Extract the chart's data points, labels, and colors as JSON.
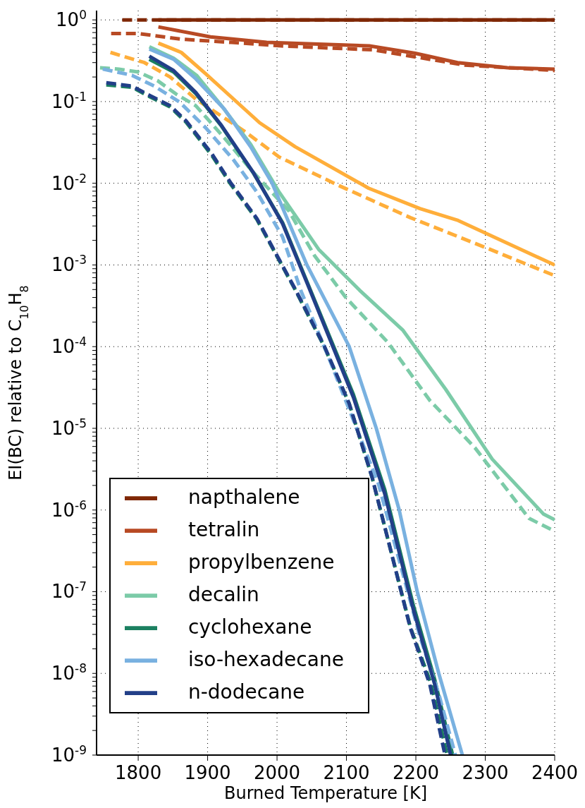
{
  "chart_data": {
    "type": "line",
    "xlabel": "Burned Temperature [K]",
    "ylabel": "EI(BC) relative to C$_{10}$H$_{8}$",
    "xlim": [
      1740,
      2400
    ],
    "xticks": [
      1800,
      1900,
      2000,
      2100,
      2200,
      2300,
      2400
    ],
    "ylim": [
      1e-09,
      1.3
    ],
    "log": "y",
    "grid": true,
    "legend": "bottom left",
    "yticks": [
      {
        "value": 1e-09,
        "label": "10$^{-9}$"
      },
      {
        "value": 1e-08,
        "label": "10$^{-8}$"
      },
      {
        "value": 1e-07,
        "label": "10$^{-7}$"
      },
      {
        "value": 1e-06,
        "label": "10$^{-6}$"
      },
      {
        "value": 1e-05,
        "label": "10$^{-5}$"
      },
      {
        "value": 0.0001,
        "label": "10$^{-4}$"
      },
      {
        "value": 0.001,
        "label": "10$^{-3}$"
      },
      {
        "value": 0.01,
        "label": "10$^{-2}$"
      },
      {
        "value": 0.1,
        "label": "10$^{-1}$"
      },
      {
        "value": 1,
        "label": "10$^{0}$"
      },
      {
        "value": 2e-09,
        "label": null
      },
      {
        "value": 3e-09,
        "label": null
      },
      {
        "value": 4e-09,
        "label": null
      },
      {
        "value": 5e-09,
        "label": null
      },
      {
        "value": 6e-09,
        "label": null
      },
      {
        "value": 7e-09,
        "label": null
      },
      {
        "value": 8e-09,
        "label": null
      },
      {
        "value": 9e-09,
        "label": null
      },
      {
        "value": 2e-08,
        "label": null
      },
      {
        "value": 3e-08,
        "label": null
      },
      {
        "value": 4e-08,
        "label": null
      },
      {
        "value": 5e-08,
        "label": null
      },
      {
        "value": 6e-08,
        "label": null
      },
      {
        "value": 7e-08,
        "label": null
      },
      {
        "value": 8e-08,
        "label": null
      },
      {
        "value": 9e-08,
        "label": null
      },
      {
        "value": 2e-07,
        "label": null
      },
      {
        "value": 3e-07,
        "label": null
      },
      {
        "value": 4e-07,
        "label": null
      },
      {
        "value": 5e-07,
        "label": null
      },
      {
        "value": 6e-07,
        "label": null
      },
      {
        "value": 7e-07,
        "label": null
      },
      {
        "value": 8e-07,
        "label": null
      },
      {
        "value": 9e-07,
        "label": null
      },
      {
        "value": 2e-06,
        "label": null
      },
      {
        "value": 3e-06,
        "label": null
      },
      {
        "value": 4e-06,
        "label": null
      },
      {
        "value": 5e-06,
        "label": null
      },
      {
        "value": 6e-06,
        "label": null
      },
      {
        "value": 7e-06,
        "label": null
      },
      {
        "value": 8e-06,
        "label": null
      },
      {
        "value": 9e-06,
        "label": null
      },
      {
        "value": 2e-05,
        "label": null
      },
      {
        "value": 3e-05,
        "label": null
      },
      {
        "value": 4e-05,
        "label": null
      },
      {
        "value": 5e-05,
        "label": null
      },
      {
        "value": 6e-05,
        "label": null
      },
      {
        "value": 7e-05,
        "label": null
      },
      {
        "value": 8e-05,
        "label": null
      },
      {
        "value": 9e-05,
        "label": null
      },
      {
        "value": 0.0002,
        "label": null
      },
      {
        "value": 0.0003,
        "label": null
      },
      {
        "value": 0.0004,
        "label": null
      },
      {
        "value": 0.0005,
        "label": null
      },
      {
        "value": 0.0006,
        "label": null
      },
      {
        "value": 0.0007,
        "label": null
      },
      {
        "value": 0.0008,
        "label": null
      },
      {
        "value": 0.0009,
        "label": null
      },
      {
        "value": 0.002,
        "label": null
      },
      {
        "value": 0.003,
        "label": null
      },
      {
        "value": 0.004,
        "label": null
      },
      {
        "value": 0.005,
        "label": null
      },
      {
        "value": 0.006,
        "label": null
      },
      {
        "value": 0.007,
        "label": null
      },
      {
        "value": 0.008,
        "label": null
      },
      {
        "value": 0.009,
        "label": null
      },
      {
        "value": 0.02,
        "label": null
      },
      {
        "value": 0.03,
        "label": null
      },
      {
        "value": 0.04,
        "label": null
      },
      {
        "value": 0.05,
        "label": null
      },
      {
        "value": 0.06,
        "label": null
      },
      {
        "value": 0.07,
        "label": null
      },
      {
        "value": 0.08,
        "label": null
      },
      {
        "value": 0.09,
        "label": null
      },
      {
        "value": 0.2,
        "label": null
      },
      {
        "value": 0.3,
        "label": null
      },
      {
        "value": 0.4,
        "label": null
      },
      {
        "value": 0.5,
        "label": null
      },
      {
        "value": 0.6,
        "label": null
      },
      {
        "value": 0.7,
        "label": null
      },
      {
        "value": 0.8,
        "label": null
      },
      {
        "value": 0.9,
        "label": null
      }
    ],
    "series": [
      {
        "name": "napthalene",
        "color": "#7f2704",
        "line_style": "solid",
        "x": [
          1829,
          2000,
          2200,
          2400
        ],
        "values": [
          1,
          1,
          1,
          1
        ]
      },
      {
        "color": "#7f2704",
        "line_style": "dashed",
        "x": [
          1777,
          2000,
          2200,
          2400
        ],
        "values": [
          1,
          1,
          1,
          1
        ]
      },
      {
        "name": "tetralin",
        "color": "#b84a24",
        "line_style": "solid",
        "x": [
          1829,
          1904,
          1985,
          2133,
          2199,
          2260,
          2332,
          2400
        ],
        "values": [
          0.82,
          0.62,
          0.53,
          0.48,
          0.39,
          0.3,
          0.26,
          0.25
        ]
      },
      {
        "color": "#b84a24",
        "line_style": "dashed",
        "x": [
          1761,
          1800,
          1863,
          1934,
          2006,
          2138,
          2270,
          2400
        ],
        "values": [
          0.68,
          0.68,
          0.58,
          0.53,
          0.48,
          0.43,
          0.28,
          0.24
        ]
      },
      {
        "name": "propylbenzene",
        "color": "#ffae3a",
        "line_style": "solid",
        "x": [
          1829,
          1862,
          1897,
          1975,
          2026,
          2132,
          2206,
          2261,
          2400
        ],
        "values": [
          0.52,
          0.4,
          0.22,
          0.055,
          0.028,
          0.0087,
          0.0049,
          0.0035,
          0.001
        ]
      },
      {
        "color": "#ffae3a",
        "line_style": "dashed",
        "x": [
          1760,
          1809,
          1846,
          1883,
          1952,
          2003,
          2090,
          2192,
          2303,
          2400
        ],
        "values": [
          0.4,
          0.3,
          0.2,
          0.107,
          0.044,
          0.021,
          0.0093,
          0.0038,
          0.0016,
          0.00074
        ]
      },
      {
        "name": "decalin",
        "color": "#7ccba8",
        "line_style": "solid",
        "x": [
          1816,
          1851,
          1884,
          1920,
          1962,
          2003,
          2060,
          2119,
          2181,
          2243,
          2310,
          2384,
          2400
        ],
        "values": [
          0.47,
          0.34,
          0.21,
          0.089,
          0.03,
          0.0078,
          0.00155,
          0.00049,
          0.00016,
          3e-05,
          4.2e-06,
          8.9e-07,
          7.6e-07
        ]
      },
      {
        "color": "#7ccba8",
        "line_style": "dashed",
        "x": [
          1745,
          1772,
          1800,
          1828,
          1855,
          1883,
          1924,
          1962,
          2017,
          2054,
          2099,
          2160,
          2220,
          2285,
          2363,
          2400
        ],
        "values": [
          0.26,
          0.25,
          0.23,
          0.18,
          0.123,
          0.089,
          0.036,
          0.0148,
          0.0046,
          0.0013,
          0.0004,
          0.000112,
          2.2e-05,
          5.8e-06,
          7.9e-07,
          5.5e-07
        ]
      },
      {
        "name": "cyclohexane",
        "color": "#1b8060",
        "line_style": "solid",
        "x": [
          1816,
          1851,
          1883,
          1920,
          1966,
          2008,
          2044,
          2110,
          2155,
          2196,
          2227,
          2253
        ],
        "values": [
          0.33,
          0.23,
          0.125,
          0.05,
          0.0133,
          0.0033,
          0.0006,
          2.6e-05,
          1.8e-06,
          7e-08,
          8.5e-09,
          1e-09
        ]
      },
      {
        "color": "#1b8060",
        "line_style": "dashed",
        "x": [
          1754,
          1791,
          1818,
          1846,
          1869,
          1906,
          1933,
          1971,
          2026,
          2068,
          2104,
          2137,
          2158,
          2192,
          2222,
          2245
        ],
        "values": [
          0.16,
          0.15,
          0.113,
          0.086,
          0.056,
          0.022,
          0.0098,
          0.0036,
          0.0005,
          0.0001,
          2e-05,
          2.5e-06,
          5e-07,
          3.7e-08,
          7.4e-09,
          1e-09
        ]
      },
      {
        "name": "iso-hexadecane",
        "color": "#79b1e0",
        "line_style": "solid",
        "x": [
          1816,
          1851,
          1883,
          1924,
          1962,
          1993,
          2043,
          2104,
          2143,
          2176,
          2202,
          2233,
          2267
        ],
        "values": [
          0.44,
          0.33,
          0.19,
          0.081,
          0.028,
          0.01,
          0.001,
          0.0001,
          1e-05,
          1e-06,
          1e-07,
          1e-08,
          1e-09
        ]
      },
      {
        "color": "#79b1e0",
        "line_style": "dashed",
        "x": [
          1749,
          1791,
          1823,
          1860,
          1897,
          1938,
          1971,
          2008,
          2035,
          2072,
          2110,
          2146,
          2206,
          2233,
          2257
        ],
        "values": [
          0.25,
          0.21,
          0.155,
          0.098,
          0.048,
          0.019,
          0.0078,
          0.0022,
          0.00047,
          8.3e-05,
          1.26e-05,
          2.1e-06,
          2.8e-08,
          5.6e-09,
          1e-09
        ]
      },
      {
        "name": "n-dodecane",
        "color": "#223f88",
        "line_style": "solid",
        "x": [
          1816,
          1851,
          1883,
          1920,
          1966,
          2008,
          2044,
          2110,
          2155,
          2196,
          2227,
          2250
        ],
        "values": [
          0.36,
          0.24,
          0.129,
          0.051,
          0.0135,
          0.0032,
          0.00058,
          2.4e-05,
          1.6e-06,
          6.2e-08,
          7.4e-09,
          1e-09
        ]
      },
      {
        "color": "#223f88",
        "line_style": "dashed",
        "x": [
          1754,
          1791,
          1818,
          1846,
          1869,
          1906,
          1933,
          1971,
          2026,
          2068,
          2104,
          2137,
          2158,
          2192,
          2220,
          2242
        ],
        "values": [
          0.17,
          0.155,
          0.117,
          0.089,
          0.058,
          0.023,
          0.0102,
          0.0037,
          0.00051,
          0.000102,
          2e-05,
          2.5e-06,
          5e-07,
          3.6e-08,
          7.4e-09,
          1e-09
        ]
      }
    ]
  }
}
